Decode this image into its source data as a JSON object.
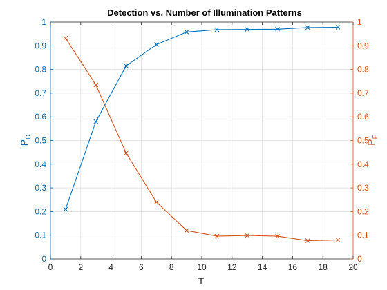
{
  "chart_data": {
    "type": "line",
    "title": "Detection vs. Number of Illumination Patterns",
    "xlabel": "T",
    "ylabel_left": {
      "main": "P",
      "sub": "D"
    },
    "ylabel_right": {
      "main": "P",
      "sub": "F"
    },
    "xlim": [
      0,
      20
    ],
    "ylim_left": [
      0,
      1
    ],
    "ylim_right": [
      0,
      1
    ],
    "x_ticks": [
      0,
      2,
      4,
      6,
      8,
      10,
      12,
      14,
      16,
      18,
      20
    ],
    "y_ticks": [
      0,
      0.1,
      0.2,
      0.3,
      0.4,
      0.5,
      0.6,
      0.7,
      0.8,
      0.9,
      1
    ],
    "grid": true,
    "marker": "x",
    "x": [
      1,
      3,
      5,
      7,
      9,
      11,
      13,
      15,
      17,
      19
    ],
    "series": [
      {
        "axis": "left",
        "color": "#0072BD",
        "values": [
          0.21,
          0.58,
          0.815,
          0.905,
          0.958,
          0.968,
          0.969,
          0.97,
          0.977,
          0.978
        ]
      },
      {
        "axis": "right",
        "color": "#D95319",
        "values": [
          0.932,
          0.735,
          0.447,
          0.24,
          0.12,
          0.096,
          0.099,
          0.096,
          0.077,
          0.08
        ]
      }
    ],
    "colors": {
      "left_axis": "#0072BD",
      "right_axis": "#D95319",
      "grid": "#dcdcdc",
      "box": "#262626"
    }
  }
}
